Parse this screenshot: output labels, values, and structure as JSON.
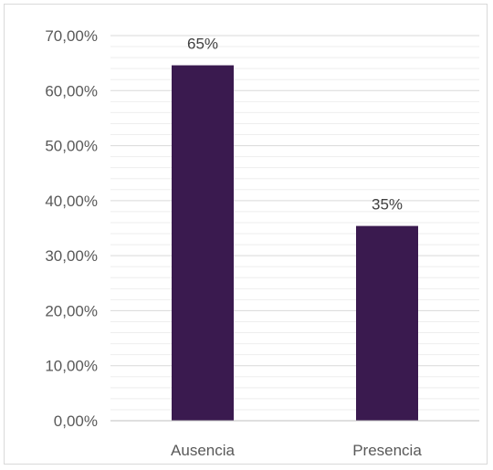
{
  "chart_data": {
    "type": "bar",
    "categories": [
      "Ausencia",
      "Presencia"
    ],
    "values": [
      64.6,
      35.4
    ],
    "data_labels": [
      "65%",
      "35%"
    ],
    "ylim": [
      0,
      70
    ],
    "y_major_step": 10,
    "y_minor_step": 2,
    "y_tick_labels": [
      "0,00%",
      "10,00%",
      "20,00%",
      "30,00%",
      "40,00%",
      "50,00%",
      "60,00%",
      "70,00%"
    ],
    "title": "",
    "xlabel": "",
    "ylabel": "",
    "legend": "none",
    "grid": true,
    "colors": {
      "bar": "#3a1a4f",
      "major_grid": "#d9d9d9",
      "minor_grid": "#eeeeee",
      "axis": "#bfbfbf"
    }
  }
}
